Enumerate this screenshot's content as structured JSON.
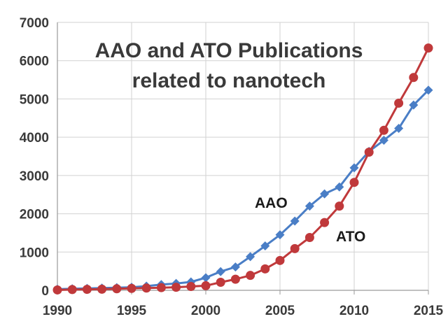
{
  "chart_data": {
    "type": "line",
    "title_lines": [
      "AAO and ATO Publications",
      "related to nanotech"
    ],
    "xlabel": "",
    "ylabel": "",
    "xlim": [
      1990,
      2015
    ],
    "ylim": [
      0,
      7000
    ],
    "x_ticks": [
      1990,
      1995,
      2000,
      2005,
      2010,
      2015
    ],
    "y_ticks": [
      0,
      1000,
      2000,
      3000,
      4000,
      5000,
      6000,
      7000
    ],
    "grid": true,
    "legend": "none",
    "x": [
      1990,
      1991,
      1992,
      1993,
      1994,
      1995,
      1996,
      1997,
      1998,
      1999,
      2000,
      2001,
      2002,
      2003,
      2004,
      2005,
      2006,
      2007,
      2008,
      2009,
      2010,
      2011,
      2012,
      2013,
      2014,
      2015
    ],
    "series": [
      {
        "name": "AAO",
        "color": "#4a7ec6",
        "marker": "diamond",
        "values": [
          30,
          40,
          50,
          60,
          70,
          80,
          110,
          150,
          180,
          220,
          330,
          490,
          610,
          880,
          1160,
          1450,
          1810,
          2200,
          2520,
          2700,
          3200,
          3630,
          3920,
          4230,
          4840,
          5230
        ]
      },
      {
        "name": "ATO",
        "color": "#c0393b",
        "marker": "circle",
        "values": [
          10,
          20,
          25,
          30,
          40,
          50,
          60,
          70,
          80,
          100,
          120,
          210,
          290,
          390,
          560,
          780,
          1090,
          1380,
          1770,
          2200,
          2820,
          3610,
          4180,
          4890,
          5560,
          6330
        ]
      }
    ]
  }
}
